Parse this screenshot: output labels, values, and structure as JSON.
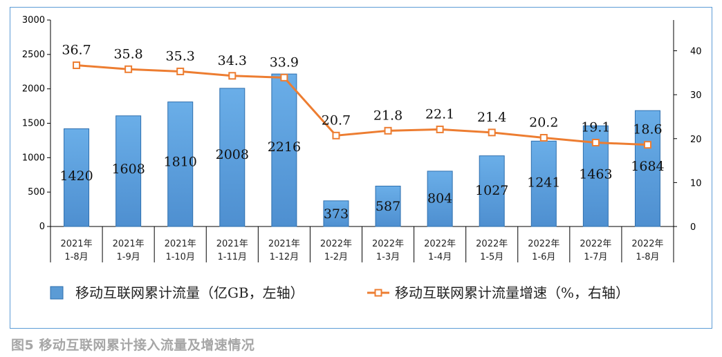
{
  "caption": "图5 移动互联网累计接入流量及增速情况",
  "chart_data": {
    "type": "bar+line",
    "categories": [
      [
        "2021年",
        "1-8月"
      ],
      [
        "2021年",
        "1-9月"
      ],
      [
        "2021年",
        "1-10月"
      ],
      [
        "2021年",
        "1-11月"
      ],
      [
        "2021年",
        "1-12月"
      ],
      [
        "2022年",
        "1-2月"
      ],
      [
        "2022年",
        "1-3月"
      ],
      [
        "2022年",
        "1-4月"
      ],
      [
        "2022年",
        "1-5月"
      ],
      [
        "2022年",
        "1-6月"
      ],
      [
        "2022年",
        "1-7月"
      ],
      [
        "2022年",
        "1-8月"
      ]
    ],
    "series": [
      {
        "name": "移动互联网累计流量（亿GB，左轴）",
        "type": "bar",
        "axis": "left",
        "color": "#5b9bd5",
        "values": [
          1420,
          1608,
          1810,
          2008,
          2216,
          373,
          587,
          804,
          1027,
          1241,
          1463,
          1684
        ]
      },
      {
        "name": "移动互联网累计流量增速（%，右轴）",
        "type": "line",
        "axis": "right",
        "color": "#ed7d31",
        "values": [
          36.7,
          35.8,
          35.3,
          34.3,
          33.9,
          20.7,
          21.8,
          22.1,
          21.4,
          20.2,
          19.1,
          18.6
        ]
      }
    ],
    "left_axis": {
      "min": 0,
      "max": 3000,
      "ticks": [
        0,
        500,
        1000,
        1500,
        2000,
        2500,
        3000
      ]
    },
    "right_axis": {
      "min": 0,
      "max": 47,
      "ticks": [
        0,
        10,
        20,
        30,
        40
      ]
    },
    "legend_position": "bottom",
    "grid": false
  }
}
